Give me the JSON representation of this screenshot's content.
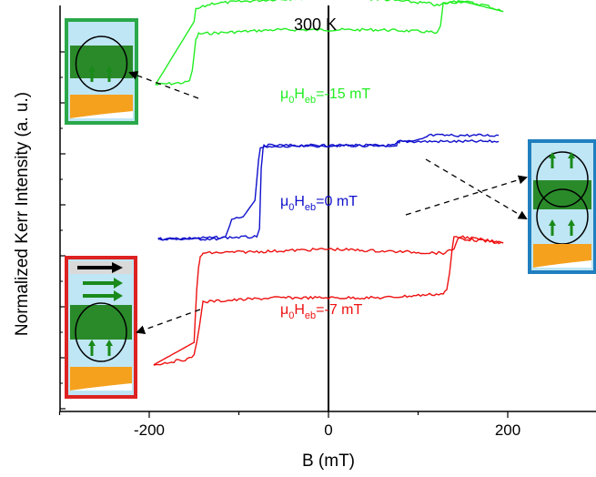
{
  "chart_data": {
    "type": "line",
    "title": "",
    "annotation": "300 K",
    "xlabel": "B (mT)",
    "ylabel": "Normalized Kerr Intensity (a. u.)",
    "xlim": [
      -300,
      300
    ],
    "xticks": [
      -200,
      0,
      200
    ],
    "xtick_labels": [
      "-200",
      "0",
      "200"
    ],
    "ylim": [
      0,
      1
    ],
    "grid": false,
    "legend": "none",
    "series": [
      {
        "color": "#22ee22",
        "label_base": "μ",
        "label_sub1": "0",
        "label_mid": "H",
        "label_sub2": "eb",
        "label_value": "=-15 mT",
        "x": [
          -193,
          -160,
          -152,
          -148,
          -145,
          -130,
          -60,
          0,
          60,
          112,
          121,
          125,
          128,
          150,
          176,
          195,
          176,
          150,
          128,
          125,
          121,
          112,
          60,
          0,
          -60,
          -130,
          -145,
          -148,
          -152,
          -160,
          -193
        ],
        "y": [
          0.805,
          0.81,
          0.815,
          0.84,
          0.915,
          0.935,
          0.95,
          0.955,
          0.95,
          0.94,
          0.925,
          0.95,
          1.005,
          1.01,
          0.995,
          0.985,
          0.995,
          1.01,
          1.005,
          0.95,
          0.925,
          0.94,
          0.95,
          0.955,
          0.95,
          0.935,
          0.915,
          0.84,
          0.815,
          0.81,
          0.805
        ],
        "lower_x": [
          -193,
          -160,
          -155,
          -152,
          -148,
          -145,
          -60,
          0,
          60,
          112,
          121,
          125,
          128,
          150,
          195
        ],
        "lower_y": [
          0.805,
          0.81,
          0.815,
          0.84,
          0.915,
          0.93,
          0.94,
          0.94,
          0.94,
          0.935,
          0.93,
          0.95,
          1.005,
          1.01,
          0.985
        ],
        "upper_x": [
          -193,
          -150,
          -148,
          -130,
          -60,
          0,
          60,
          112,
          121,
          125,
          128,
          150,
          176,
          195
        ],
        "upper_y": [
          0.805,
          0.96,
          0.99,
          1.005,
          1.015,
          1.02,
          1.015,
          1.005,
          1.0,
          1.0,
          1.005,
          1.01,
          1.0,
          0.985
        ]
      },
      {
        "color": "#1010cc",
        "label_base": "μ",
        "label_sub1": "0",
        "label_mid": "H",
        "label_sub2": "eb",
        "label_value": "=0 mT",
        "lower_x": [
          -190,
          -120,
          -115,
          -108,
          -100,
          -95,
          -82,
          -78,
          -76,
          0,
          74,
          76,
          78,
          190
        ],
        "lower_y": [
          0.425,
          0.425,
          0.43,
          0.47,
          0.48,
          0.48,
          0.52,
          0.62,
          0.65,
          0.655,
          0.655,
          0.66,
          0.665,
          0.665
        ],
        "upper_x": [
          -190,
          -80,
          -77,
          -75,
          -73,
          -72,
          0,
          76,
          78,
          80,
          95,
          105,
          112,
          190
        ],
        "upper_y": [
          0.425,
          0.43,
          0.45,
          0.6,
          0.645,
          0.655,
          0.655,
          0.655,
          0.665,
          0.665,
          0.665,
          0.67,
          0.68,
          0.68
        ],
        "x_loop": [
          -190,
          -120,
          -115,
          -108,
          -100,
          -82,
          -78,
          -76,
          -74,
          -72,
          0,
          74,
          76,
          78,
          80,
          95,
          105,
          112,
          190,
          112,
          105,
          95,
          80,
          78,
          76,
          74,
          0,
          -72,
          -74,
          -76,
          -78,
          -82,
          -100,
          -108,
          -115,
          -120,
          -190
        ],
        "y_loop": [
          0.425,
          0.425,
          0.43,
          0.47,
          0.48,
          0.52,
          0.62,
          0.65,
          0.655,
          0.655,
          0.655,
          0.655,
          0.66,
          0.665,
          0.665,
          0.665,
          0.67,
          0.68,
          0.68,
          0.68,
          0.67,
          0.665,
          0.665,
          0.665,
          0.66,
          0.655,
          0.655,
          0.655,
          0.655,
          0.65,
          0.62,
          0.52,
          0.48,
          0.47,
          0.43,
          0.425,
          0.425
        ]
      },
      {
        "color": "#ee1111",
        "label_base": "μ",
        "label_sub1": "0",
        "label_mid": "H",
        "label_sub2": "eb",
        "label_value": "=-7 mT",
        "lower_x": [
          -195,
          -155,
          -150,
          -147,
          -144,
          -140,
          -60,
          0,
          60,
          128,
          132,
          135,
          138,
          140,
          150,
          195
        ],
        "lower_y": [
          0.115,
          0.13,
          0.14,
          0.17,
          0.21,
          0.27,
          0.28,
          0.28,
          0.28,
          0.29,
          0.3,
          0.34,
          0.4,
          0.43,
          0.425,
          0.415
        ],
        "upper_x": [
          -195,
          -150,
          -147,
          -145,
          -143,
          -140,
          -60,
          0,
          60,
          128,
          135,
          140,
          145,
          150,
          195
        ],
        "upper_y": [
          0.115,
          0.17,
          0.3,
          0.355,
          0.38,
          0.39,
          0.395,
          0.4,
          0.395,
          0.39,
          0.395,
          0.4,
          0.43,
          0.43,
          0.415
        ]
      }
    ],
    "insets": [
      {
        "position": "top-left",
        "frame_color": "#2aa84a"
      },
      {
        "position": "right",
        "frame_color": "#1f7fbf"
      },
      {
        "position": "bottom-left",
        "frame_color": "#dd2222"
      }
    ]
  }
}
